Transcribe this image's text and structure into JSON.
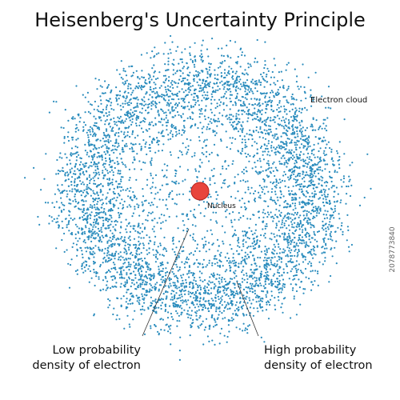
{
  "title": "Heisenberg's Uncertainty Principle",
  "labels": {
    "nucleus": "Nucleus",
    "electron_cloud": "Electron cloud"
  },
  "callouts": [
    {
      "lines": [
        "Low probability",
        "density of electron"
      ]
    },
    {
      "lines": [
        "High probability",
        "density of electron"
      ]
    }
  ],
  "watermark_id": "2078773840"
}
